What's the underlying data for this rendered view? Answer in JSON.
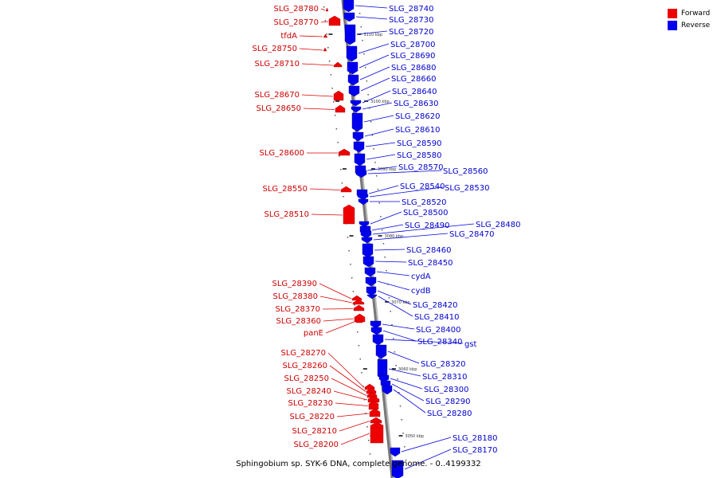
{
  "caption": "Sphingobium sp. SYK-6 DNA, complete genome. - 0..4199332",
  "legend": {
    "forward": {
      "label": "Forward",
      "color": "#ee0000"
    },
    "reverse": {
      "label": "Reverse",
      "color": "#0000ee"
    }
  },
  "scale_ticks": [
    "3110 kbp",
    "3100 kbp",
    "3090 kbp",
    "3080 kbp",
    "3070 kbp",
    "3060 kbp",
    "3050 kbp"
  ],
  "forward_genes": [
    "SLG_28780",
    "SLG_28770",
    "tfdA",
    "SLG_28750",
    "SLG_28710",
    "SLG_28670",
    "SLG_28650",
    "SLG_28600",
    "SLG_28550",
    "SLG_28510",
    "SLG_28390",
    "SLG_28380",
    "SLG_28370",
    "SLG_28360",
    "panE",
    "SLG_28270",
    "SLG_28260",
    "SLG_28250",
    "SLG_28240",
    "SLG_28230",
    "SLG_28220",
    "SLG_28210",
    "SLG_28200"
  ],
  "reverse_genes": [
    "SLG_28740",
    "SLG_28730",
    "SLG_28720",
    "SLG_28700",
    "SLG_28690",
    "SLG_28680",
    "SLG_28660",
    "SLG_28640",
    "SLG_28630",
    "SLG_28620",
    "SLG_28610",
    "SLG_28590",
    "SLG_28580",
    "SLG_28570",
    "SLG_28560",
    "SLG_28540",
    "SLG_28530",
    "SLG_28520",
    "SLG_28500",
    "SLG_28490",
    "SLG_28480",
    "SLG_28470",
    "SLG_28460",
    "SLG_28450",
    "cydA",
    "cydB",
    "SLG_28420",
    "SLG_28410",
    "SLG_28400",
    "SLG_28340",
    "gst",
    "SLG_28320",
    "SLG_28310",
    "SLG_28300",
    "SLG_28290",
    "SLG_28280",
    "SLG_28180",
    "SLG_28170"
  ]
}
